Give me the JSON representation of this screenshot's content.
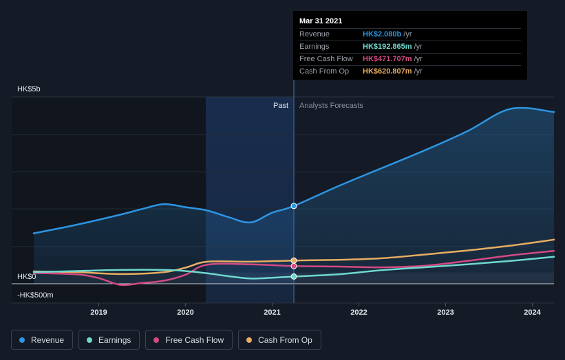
{
  "colors": {
    "revenue": "#2d95e3",
    "earnings": "#6fd9cf",
    "fcf": "#d34a82",
    "cfo": "#e8ad62",
    "background": "#151b26"
  },
  "tooltip": {
    "date": "Mar 31 2021",
    "rows": [
      {
        "label": "Revenue",
        "value": "HK$2.080b",
        "unit": "/yr"
      },
      {
        "label": "Earnings",
        "value": "HK$192.865m",
        "unit": "/yr"
      },
      {
        "label": "Free Cash Flow",
        "value": "HK$471.707m",
        "unit": "/yr"
      },
      {
        "label": "Cash From Op",
        "value": "HK$620.807m",
        "unit": "/yr"
      }
    ]
  },
  "legend": [
    {
      "label": "Revenue",
      "color_key": "revenue"
    },
    {
      "label": "Earnings",
      "color_key": "earnings"
    },
    {
      "label": "Free Cash Flow",
      "color_key": "fcf"
    },
    {
      "label": "Cash From Op",
      "color_key": "cfo"
    }
  ],
  "chart_data": {
    "type": "line",
    "title": "",
    "y_tick_labels": [
      {
        "value": 5000,
        "label": "HK$5b"
      },
      {
        "value": 0,
        "label": "HK$0"
      },
      {
        "value": -500,
        "label": "-HK$500m"
      }
    ],
    "ylim": [
      -500,
      5000
    ],
    "xlim": [
      2018.25,
      2024.25
    ],
    "x_ticks": [
      2019,
      2020,
      2021,
      2022,
      2023,
      2024
    ],
    "past_label": "Past",
    "forecast_label": "Analysts Forecasts",
    "divider_x": 2021.25,
    "shaded_past_start": 2020.25,
    "series": [
      {
        "name": "Revenue",
        "color_key": "revenue",
        "points": [
          [
            2018.25,
            1350
          ],
          [
            2018.75,
            1580
          ],
          [
            2019.25,
            1850
          ],
          [
            2019.5,
            2000
          ],
          [
            2019.75,
            2130
          ],
          [
            2020.0,
            2050
          ],
          [
            2020.25,
            1960
          ],
          [
            2020.5,
            1780
          ],
          [
            2020.75,
            1640
          ],
          [
            2021.0,
            1900
          ],
          [
            2021.25,
            2080
          ],
          [
            2021.75,
            2600
          ],
          [
            2022.25,
            3080
          ],
          [
            2022.75,
            3560
          ],
          [
            2023.25,
            4080
          ],
          [
            2023.75,
            4680
          ],
          [
            2024.25,
            4600
          ]
        ]
      },
      {
        "name": "Earnings",
        "color_key": "earnings",
        "points": [
          [
            2018.25,
            310
          ],
          [
            2018.75,
            340
          ],
          [
            2019.25,
            370
          ],
          [
            2019.75,
            370
          ],
          [
            2020.0,
            340
          ],
          [
            2020.25,
            280
          ],
          [
            2020.5,
            200
          ],
          [
            2020.75,
            140
          ],
          [
            2021.0,
            160
          ],
          [
            2021.25,
            192.865
          ],
          [
            2021.75,
            250
          ],
          [
            2022.25,
            360
          ],
          [
            2022.75,
            440
          ],
          [
            2023.25,
            520
          ],
          [
            2023.75,
            610
          ],
          [
            2024.25,
            720
          ]
        ]
      },
      {
        "name": "Free Cash Flow",
        "color_key": "fcf",
        "points": [
          [
            2018.25,
            290
          ],
          [
            2018.75,
            250
          ],
          [
            2019.0,
            150
          ],
          [
            2019.25,
            -30
          ],
          [
            2019.5,
            20
          ],
          [
            2019.75,
            80
          ],
          [
            2020.0,
            240
          ],
          [
            2020.25,
            510
          ],
          [
            2020.75,
            520
          ],
          [
            2021.25,
            471.707
          ],
          [
            2021.75,
            460
          ],
          [
            2022.25,
            440
          ],
          [
            2022.75,
            480
          ],
          [
            2023.25,
            610
          ],
          [
            2023.75,
            760
          ],
          [
            2024.25,
            880
          ]
        ]
      },
      {
        "name": "Cash From Op",
        "color_key": "cfo",
        "points": [
          [
            2018.25,
            330
          ],
          [
            2018.75,
            310
          ],
          [
            2019.25,
            260
          ],
          [
            2019.75,
            310
          ],
          [
            2020.0,
            430
          ],
          [
            2020.25,
            590
          ],
          [
            2020.75,
            590
          ],
          [
            2021.25,
            620.807
          ],
          [
            2021.75,
            640
          ],
          [
            2022.25,
            680
          ],
          [
            2022.75,
            780
          ],
          [
            2023.25,
            890
          ],
          [
            2023.75,
            1020
          ],
          [
            2024.25,
            1180
          ]
        ]
      }
    ]
  }
}
